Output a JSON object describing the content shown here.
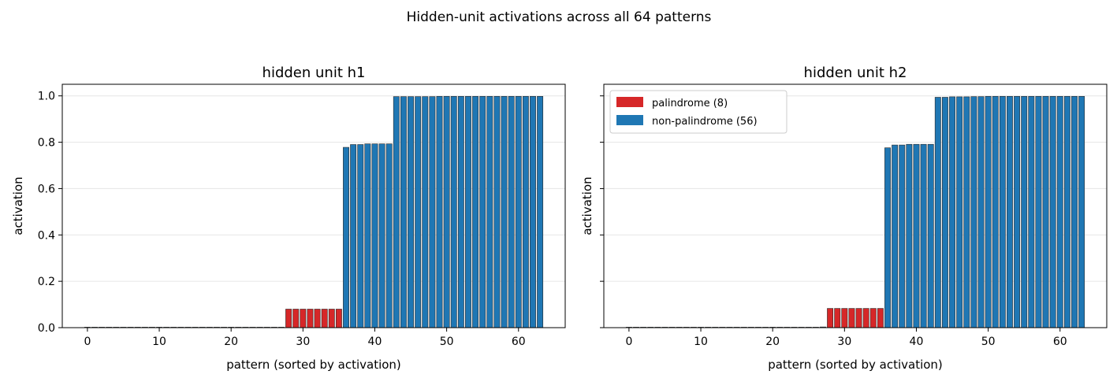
{
  "figure": {
    "suptitle": "Hidden-unit activations across all 64 patterns"
  },
  "colors": {
    "palindrome": "#d62728",
    "non_palindrome": "#1f77b4",
    "edge": "#2b2b2b",
    "grid": "#e6e6e6"
  },
  "legend": {
    "palindrome": "palindrome (8)",
    "non_palindrome": "non-palindrome (56)"
  },
  "chart_data": [
    {
      "type": "bar",
      "title": "hidden unit h1",
      "xlabel": "pattern (sorted by activation)",
      "ylabel": "activation",
      "xlim": [
        -3.5,
        66.5
      ],
      "ylim": [
        0,
        1.05
      ],
      "xticks": [
        0,
        10,
        20,
        30,
        40,
        50,
        60
      ],
      "xtick_labels": [
        "0",
        "10",
        "20",
        "30",
        "40",
        "50",
        "60"
      ],
      "yticks": [
        0,
        0.2,
        0.4,
        0.6,
        0.8,
        1.0
      ],
      "ytick_labels": [
        "0.0",
        "0.2",
        "0.4",
        "0.6",
        "0.8",
        "1.0"
      ],
      "grid": "y",
      "legend": false,
      "x": [
        0,
        1,
        2,
        3,
        4,
        5,
        6,
        7,
        8,
        9,
        10,
        11,
        12,
        13,
        14,
        15,
        16,
        17,
        18,
        19,
        20,
        21,
        22,
        23,
        24,
        25,
        26,
        27,
        28,
        29,
        30,
        31,
        32,
        33,
        34,
        35,
        36,
        37,
        38,
        39,
        40,
        41,
        42,
        43,
        44,
        45,
        46,
        47,
        48,
        49,
        50,
        51,
        52,
        53,
        54,
        55,
        56,
        57,
        58,
        59,
        60,
        61,
        62,
        63
      ],
      "values": [
        0.0,
        0.0,
        0.0,
        0.0,
        0.0,
        0.0,
        0.0,
        0.0,
        0.0,
        0.0,
        0.0,
        0.0,
        0.0,
        0.0,
        0.0,
        0.0,
        0.0,
        0.0,
        0.0,
        0.0,
        0.0,
        0.0,
        0.0,
        0.0,
        0.0,
        0.0,
        0.0,
        0.0,
        0.08,
        0.08,
        0.08,
        0.08,
        0.08,
        0.08,
        0.08,
        0.08,
        0.778,
        0.79,
        0.79,
        0.793,
        0.793,
        0.793,
        0.793,
        0.997,
        0.997,
        0.997,
        0.997,
        0.997,
        0.997,
        0.998,
        0.998,
        0.998,
        0.998,
        0.998,
        0.998,
        0.998,
        0.998,
        0.998,
        0.998,
        0.998,
        0.998,
        0.998,
        0.998,
        0.998
      ],
      "category": [
        "n",
        "n",
        "n",
        "n",
        "n",
        "n",
        "n",
        "n",
        "n",
        "n",
        "n",
        "n",
        "n",
        "n",
        "n",
        "n",
        "n",
        "n",
        "n",
        "n",
        "n",
        "n",
        "n",
        "n",
        "n",
        "n",
        "n",
        "n",
        "p",
        "p",
        "p",
        "p",
        "p",
        "p",
        "p",
        "p",
        "n",
        "n",
        "n",
        "n",
        "n",
        "n",
        "n",
        "n",
        "n",
        "n",
        "n",
        "n",
        "n",
        "n",
        "n",
        "n",
        "n",
        "n",
        "n",
        "n",
        "n",
        "n",
        "n",
        "n",
        "n",
        "n",
        "n",
        "n"
      ]
    },
    {
      "type": "bar",
      "title": "hidden unit h2",
      "xlabel": "pattern (sorted by activation)",
      "ylabel": "activation",
      "xlim": [
        -3.5,
        66.5
      ],
      "ylim": [
        0,
        1.05
      ],
      "xticks": [
        0,
        10,
        20,
        30,
        40,
        50,
        60
      ],
      "xtick_labels": [
        "0",
        "10",
        "20",
        "30",
        "40",
        "50",
        "60"
      ],
      "yticks": [
        0,
        0.2,
        0.4,
        0.6,
        0.8,
        1.0
      ],
      "ytick_labels": [],
      "grid": "y",
      "legend": true,
      "legend_position": "upper left",
      "x": [
        0,
        1,
        2,
        3,
        4,
        5,
        6,
        7,
        8,
        9,
        10,
        11,
        12,
        13,
        14,
        15,
        16,
        17,
        18,
        19,
        20,
        21,
        22,
        23,
        24,
        25,
        26,
        27,
        28,
        29,
        30,
        31,
        32,
        33,
        34,
        35,
        36,
        37,
        38,
        39,
        40,
        41,
        42,
        43,
        44,
        45,
        46,
        47,
        48,
        49,
        50,
        51,
        52,
        53,
        54,
        55,
        56,
        57,
        58,
        59,
        60,
        61,
        62,
        63
      ],
      "values": [
        0.0,
        0.0,
        0.0,
        0.0,
        0.0,
        0.0,
        0.0,
        0.0,
        0.0,
        0.0,
        0.0,
        0.0,
        0.0,
        0.0,
        0.0,
        0.0,
        0.0,
        0.0,
        0.0,
        0.0,
        0.0,
        0.0,
        0.0,
        0.0,
        0.0,
        0.0,
        0.0,
        0.003,
        0.083,
        0.083,
        0.083,
        0.083,
        0.083,
        0.083,
        0.083,
        0.083,
        0.776,
        0.788,
        0.788,
        0.791,
        0.791,
        0.791,
        0.791,
        0.994,
        0.994,
        0.996,
        0.996,
        0.996,
        0.997,
        0.997,
        0.998,
        0.998,
        0.998,
        0.998,
        0.998,
        0.998,
        0.998,
        0.998,
        0.998,
        0.998,
        0.998,
        0.998,
        0.998,
        0.998
      ],
      "category": [
        "n",
        "n",
        "n",
        "n",
        "n",
        "n",
        "n",
        "n",
        "n",
        "n",
        "n",
        "n",
        "n",
        "n",
        "n",
        "n",
        "n",
        "n",
        "n",
        "n",
        "n",
        "n",
        "n",
        "n",
        "n",
        "n",
        "n",
        "n",
        "p",
        "p",
        "p",
        "p",
        "p",
        "p",
        "p",
        "p",
        "n",
        "n",
        "n",
        "n",
        "n",
        "n",
        "n",
        "n",
        "n",
        "n",
        "n",
        "n",
        "n",
        "n",
        "n",
        "n",
        "n",
        "n",
        "n",
        "n",
        "n",
        "n",
        "n",
        "n",
        "n",
        "n",
        "n",
        "n"
      ]
    }
  ]
}
